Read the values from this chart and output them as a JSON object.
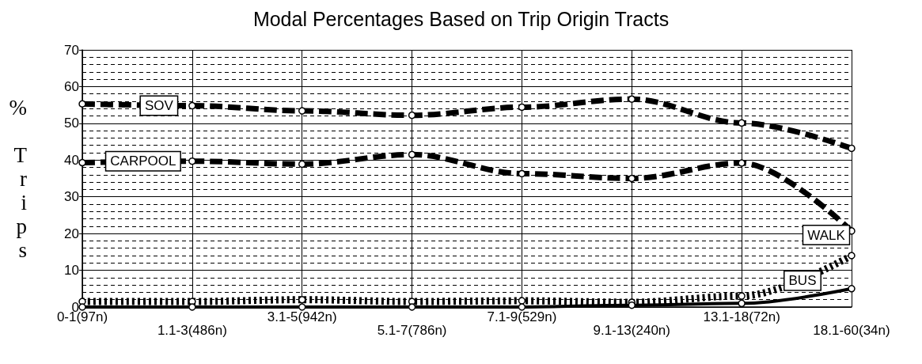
{
  "chart_data": {
    "type": "line",
    "title": "Modal Percentages Based on Trip Origin Tracts",
    "ylabel": "% Trips",
    "categories": [
      "0-1(97n)",
      "1.1-3(486n)",
      "3.1-5(942n)",
      "5.1-7(786n)",
      "7.1-9(529n)",
      "9.1-13(240n)",
      "13.1-18(72n)",
      "18.1-60(34n)"
    ],
    "series": [
      {
        "name": "SOV",
        "color": "#000000",
        "line_style": "dashed",
        "values": [
          55.3,
          54.8,
          53.4,
          52.2,
          54.4,
          56.6,
          50.1,
          43.2
        ]
      },
      {
        "name": "CARPOOL",
        "color": "#000000",
        "line_style": "dashed",
        "values": [
          39.3,
          39.7,
          38.9,
          41.5,
          36.3,
          35.0,
          39.2,
          20.7
        ]
      },
      {
        "name": "WALK",
        "color": "#000000",
        "line_style": "dotted",
        "values": [
          1.5,
          1.5,
          2.0,
          1.5,
          1.7,
          1.3,
          3.0,
          14
        ]
      },
      {
        "name": "BUS",
        "color": "#000000",
        "line_style": "solid",
        "values": [
          0,
          0,
          0,
          0,
          0,
          0.5,
          1,
          5
        ]
      }
    ],
    "ylim": [
      0,
      70
    ],
    "yticks": [
      0,
      10,
      20,
      30,
      40,
      50,
      60,
      70
    ],
    "grid": true,
    "marker": "circle",
    "legend": false
  }
}
